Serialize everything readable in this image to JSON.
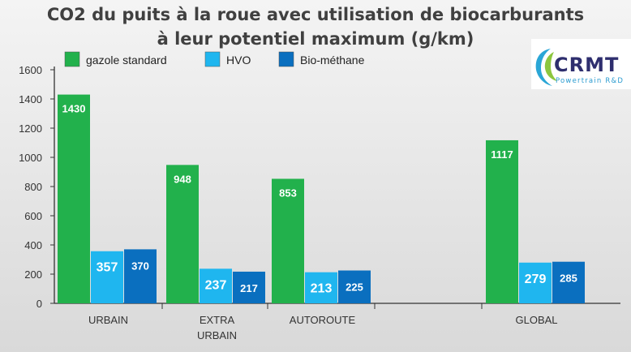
{
  "chart_data": {
    "type": "bar",
    "title_lines": [
      "CO2 du puits à la roue avec utilisation de biocarburants",
      "à leur potentiel maximum (g/km)"
    ],
    "categories": [
      [
        "URBAIN"
      ],
      [
        "EXTRA",
        "URBAIN"
      ],
      [
        "AUTOROUTE"
      ],
      [],
      [
        "GLOBAL"
      ]
    ],
    "series": [
      {
        "name": "gazole standard",
        "color": "#22b14c",
        "values": [
          1430,
          948,
          853,
          null,
          1117
        ]
      },
      {
        "name": "HVO",
        "color": "#1fb6ef",
        "values": [
          357,
          237,
          213,
          null,
          279
        ]
      },
      {
        "name": "Bio-méthane",
        "color": "#0a6fbf",
        "values": [
          370,
          217,
          225,
          null,
          285
        ]
      }
    ],
    "yticks": [
      0,
      200,
      400,
      600,
      800,
      1000,
      1200,
      1400,
      1600
    ],
    "ylim": [
      0,
      1600
    ],
    "xlabel": "",
    "ylabel": "",
    "grid": false,
    "legend_position": "top-left"
  },
  "logo": {
    "name": "CRMT",
    "tagline": "Powertrain R&D"
  }
}
